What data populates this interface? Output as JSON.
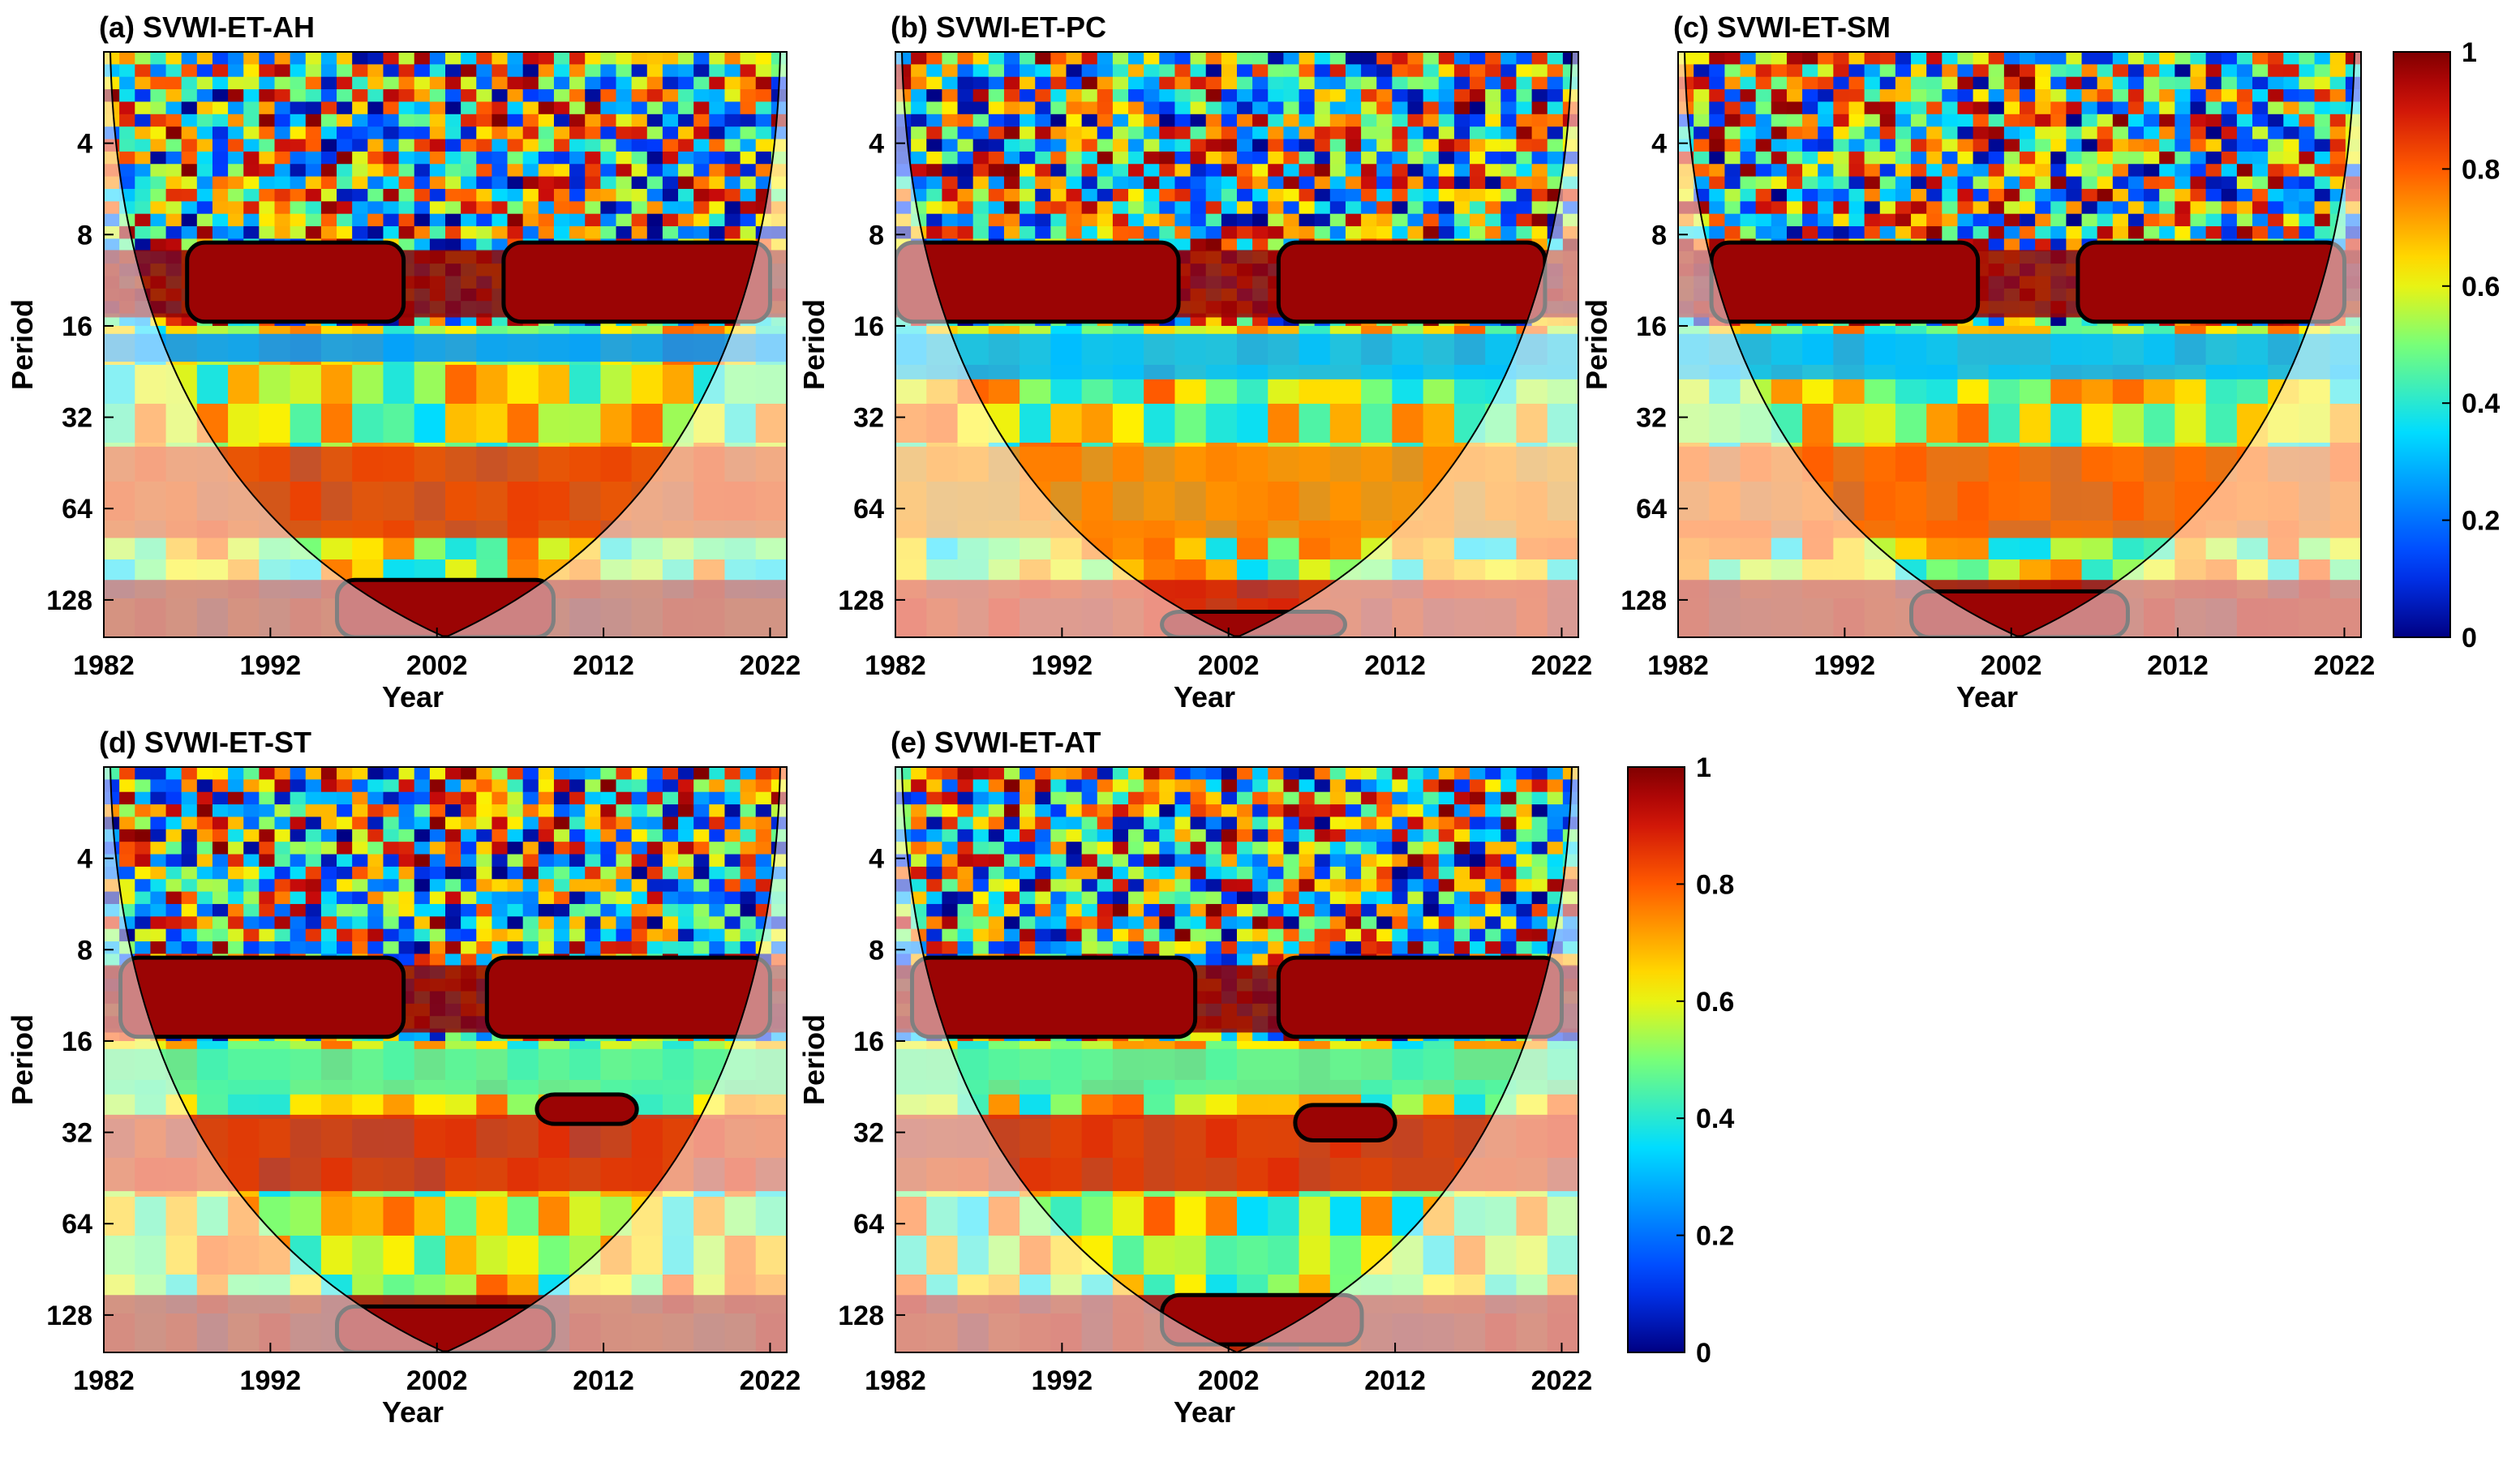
{
  "chart_data": [
    {
      "type": "heatmap",
      "title": "(a) SVWI-ET-AH",
      "xlabel": "Year",
      "ylabel": "Period",
      "xticks": [
        "1982",
        "1992",
        "2002",
        "2012",
        "2022"
      ],
      "yticks": [
        "4",
        "8",
        "16",
        "32",
        "64",
        "128"
      ],
      "xlim": [
        1982,
        2023
      ],
      "ylim": [
        2,
        170
      ],
      "period_bands": [
        {
          "period_min": 9,
          "period_max": 15,
          "value": 0.98
        },
        {
          "period_min": 17,
          "period_max": 21,
          "value": 0.25
        },
        {
          "period_min": 40,
          "period_max": 80,
          "value": 0.85
        },
        {
          "period_min": 110,
          "period_max": 170,
          "value": 0.97
        }
      ],
      "significant_regions": [
        {
          "year_start": 1987,
          "year_end": 2000,
          "period_min": 8.5,
          "period_max": 15.5
        },
        {
          "year_start": 2006,
          "year_end": 2022,
          "period_min": 8.5,
          "period_max": 15.5
        },
        {
          "year_start": 1996,
          "year_end": 2009,
          "period_min": 110,
          "period_max": 170
        }
      ]
    },
    {
      "type": "heatmap",
      "title": "(b) SVWI-ET-PC",
      "xlabel": "Year",
      "ylabel": "Period",
      "xticks": [
        "1982",
        "1992",
        "2002",
        "2012",
        "2022"
      ],
      "yticks": [
        "4",
        "8",
        "16",
        "32",
        "64",
        "128"
      ],
      "xlim": [
        1982,
        2023
      ],
      "ylim": [
        2,
        170
      ],
      "period_bands": [
        {
          "period_min": 9,
          "period_max": 15,
          "value": 0.97
        },
        {
          "period_min": 17,
          "period_max": 24,
          "value": 0.3
        },
        {
          "period_min": 40,
          "period_max": 80,
          "value": 0.75
        },
        {
          "period_min": 110,
          "period_max": 170,
          "value": 0.9
        }
      ],
      "significant_regions": [
        {
          "year_start": 1982,
          "year_end": 1999,
          "period_min": 8.5,
          "period_max": 15.5
        },
        {
          "year_start": 2005,
          "year_end": 2021,
          "period_min": 8.5,
          "period_max": 15.5
        },
        {
          "year_start": 1998,
          "year_end": 2009,
          "period_min": 140,
          "period_max": 170
        }
      ]
    },
    {
      "type": "heatmap",
      "title": "(c) SVWI-ET-SM",
      "xlabel": "Year",
      "ylabel": "Period",
      "xticks": [
        "1982",
        "1992",
        "2002",
        "2012",
        "2022"
      ],
      "yticks": [
        "4",
        "8",
        "16",
        "32",
        "64",
        "128"
      ],
      "xlim": [
        1982,
        2023
      ],
      "ylim": [
        2,
        170
      ],
      "period_bands": [
        {
          "period_min": 9,
          "period_max": 15,
          "value": 0.97
        },
        {
          "period_min": 17,
          "period_max": 24,
          "value": 0.3
        },
        {
          "period_min": 40,
          "period_max": 80,
          "value": 0.8
        },
        {
          "period_min": 110,
          "period_max": 170,
          "value": 0.95
        }
      ],
      "significant_regions": [
        {
          "year_start": 1984,
          "year_end": 2000,
          "period_min": 8.5,
          "period_max": 15.5
        },
        {
          "year_start": 2006,
          "year_end": 2022,
          "period_min": 8.5,
          "period_max": 15.5
        },
        {
          "year_start": 1996,
          "year_end": 2009,
          "period_min": 120,
          "period_max": 170
        }
      ]
    },
    {
      "type": "heatmap",
      "title": "(d) SVWI-ET-ST",
      "xlabel": "Year",
      "ylabel": "Period",
      "xticks": [
        "1982",
        "1992",
        "2002",
        "2012",
        "2022"
      ],
      "yticks": [
        "4",
        "8",
        "16",
        "32",
        "64",
        "128"
      ],
      "xlim": [
        1982,
        2023
      ],
      "ylim": [
        2,
        170
      ],
      "period_bands": [
        {
          "period_min": 9,
          "period_max": 15,
          "value": 0.98
        },
        {
          "period_min": 17,
          "period_max": 24,
          "value": 0.45
        },
        {
          "period_min": 28,
          "period_max": 50,
          "value": 0.88
        },
        {
          "period_min": 110,
          "period_max": 170,
          "value": 0.97
        }
      ],
      "significant_regions": [
        {
          "year_start": 1983,
          "year_end": 2000,
          "period_min": 8.5,
          "period_max": 15.5
        },
        {
          "year_start": 2005,
          "year_end": 2022,
          "period_min": 8.5,
          "period_max": 15.5
        },
        {
          "year_start": 2008,
          "year_end": 2014,
          "period_min": 24,
          "period_max": 30
        },
        {
          "year_start": 1996,
          "year_end": 2009,
          "period_min": 120,
          "period_max": 170
        }
      ]
    },
    {
      "type": "heatmap",
      "title": "(e) SVWI-ET-AT",
      "xlabel": "Year",
      "ylabel": "Period",
      "xticks": [
        "1982",
        "1992",
        "2002",
        "2012",
        "2022"
      ],
      "yticks": [
        "4",
        "8",
        "16",
        "32",
        "64",
        "128"
      ],
      "xlim": [
        1982,
        2023
      ],
      "ylim": [
        2,
        170
      ],
      "period_bands": [
        {
          "period_min": 9,
          "period_max": 15,
          "value": 0.98
        },
        {
          "period_min": 17,
          "period_max": 24,
          "value": 0.45
        },
        {
          "period_min": 28,
          "period_max": 50,
          "value": 0.88
        },
        {
          "period_min": 110,
          "period_max": 170,
          "value": 0.95
        }
      ],
      "significant_regions": [
        {
          "year_start": 1983,
          "year_end": 2000,
          "period_min": 8.5,
          "period_max": 15.5
        },
        {
          "year_start": 2005,
          "year_end": 2022,
          "period_min": 8.5,
          "period_max": 15.5
        },
        {
          "year_start": 2006,
          "year_end": 2012,
          "period_min": 26,
          "period_max": 34
        },
        {
          "year_start": 1998,
          "year_end": 2010,
          "period_min": 110,
          "period_max": 160
        }
      ]
    }
  ],
  "colorbars": [
    {
      "min": 0,
      "max": 1,
      "ticks": [
        "0",
        "0.2",
        "0.4",
        "0.6",
        "0.8",
        "1"
      ]
    },
    {
      "min": 0,
      "max": 1,
      "ticks": [
        "0",
        "0.2",
        "0.4",
        "0.6",
        "0.8",
        "1"
      ]
    }
  ]
}
